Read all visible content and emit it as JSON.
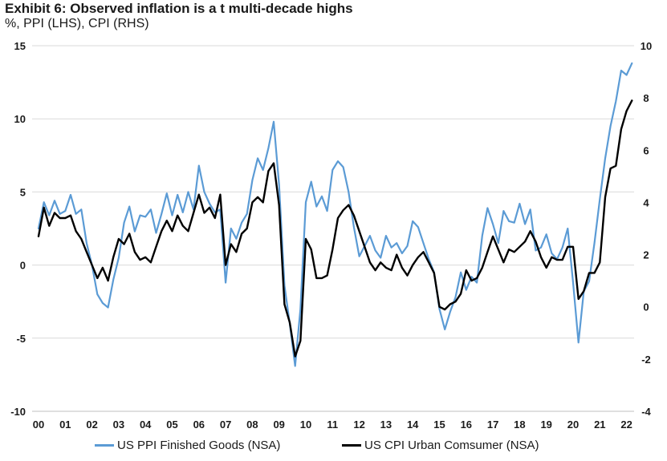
{
  "chart_data": {
    "type": "line",
    "title": "Exhibit 6: Observed inflation is a t multi-decade highs",
    "subtitle": "%, PPI (LHS), CPI (RHS)",
    "x_tick_labels": [
      "00",
      "01",
      "02",
      "03",
      "04",
      "05",
      "06",
      "07",
      "08",
      "09",
      "10",
      "11",
      "12",
      "13",
      "14",
      "15",
      "16",
      "17",
      "18",
      "19",
      "20",
      "21",
      "22"
    ],
    "x_range": [
      0,
      22.3
    ],
    "y_left": {
      "range": [
        -10,
        15
      ],
      "ticks": [
        15,
        10,
        5,
        0,
        -5,
        -10
      ]
    },
    "y_right": {
      "range": [
        -4,
        10
      ],
      "ticks": [
        10,
        8,
        6,
        4,
        2,
        0,
        -2,
        -4
      ]
    },
    "grid": "horizontal",
    "legend_position": "bottom",
    "series": [
      {
        "name": "US PPI Finished Goods (NSA)",
        "axis": "left",
        "color": "#5b9bd5",
        "points": [
          [
            0.0,
            2.5
          ],
          [
            0.2,
            4.3
          ],
          [
            0.4,
            3.4
          ],
          [
            0.6,
            4.4
          ],
          [
            0.8,
            3.5
          ],
          [
            1.0,
            3.7
          ],
          [
            1.2,
            4.8
          ],
          [
            1.4,
            3.5
          ],
          [
            1.6,
            3.8
          ],
          [
            1.8,
            1.5
          ],
          [
            2.0,
            0.0
          ],
          [
            2.2,
            -2.0
          ],
          [
            2.4,
            -2.6
          ],
          [
            2.6,
            -2.9
          ],
          [
            2.8,
            -1.0
          ],
          [
            3.0,
            0.5
          ],
          [
            3.2,
            2.9
          ],
          [
            3.4,
            4.0
          ],
          [
            3.6,
            2.3
          ],
          [
            3.8,
            3.4
          ],
          [
            4.0,
            3.3
          ],
          [
            4.2,
            3.8
          ],
          [
            4.4,
            2.2
          ],
          [
            4.6,
            3.5
          ],
          [
            4.8,
            4.9
          ],
          [
            5.0,
            3.4
          ],
          [
            5.2,
            4.8
          ],
          [
            5.4,
            3.6
          ],
          [
            5.6,
            5.0
          ],
          [
            5.8,
            3.8
          ],
          [
            6.0,
            6.8
          ],
          [
            6.2,
            5.0
          ],
          [
            6.4,
            4.2
          ],
          [
            6.6,
            3.6
          ],
          [
            6.8,
            3.8
          ],
          [
            7.0,
            -1.2
          ],
          [
            7.2,
            2.5
          ],
          [
            7.4,
            1.8
          ],
          [
            7.6,
            2.9
          ],
          [
            7.8,
            3.5
          ],
          [
            8.0,
            5.8
          ],
          [
            8.2,
            7.3
          ],
          [
            8.4,
            6.5
          ],
          [
            8.6,
            8.0
          ],
          [
            8.8,
            9.8
          ],
          [
            9.0,
            5.5
          ],
          [
            9.2,
            -1.4
          ],
          [
            9.4,
            -4.0
          ],
          [
            9.6,
            -6.9
          ],
          [
            9.8,
            -3.0
          ],
          [
            10.0,
            4.3
          ],
          [
            10.2,
            5.7
          ],
          [
            10.4,
            4.0
          ],
          [
            10.6,
            4.7
          ],
          [
            10.8,
            3.7
          ],
          [
            11.0,
            6.5
          ],
          [
            11.2,
            7.1
          ],
          [
            11.4,
            6.7
          ],
          [
            11.6,
            5.0
          ],
          [
            11.8,
            2.6
          ],
          [
            12.0,
            0.6
          ],
          [
            12.2,
            1.3
          ],
          [
            12.4,
            2.0
          ],
          [
            12.6,
            1.0
          ],
          [
            12.8,
            0.5
          ],
          [
            13.0,
            2.0
          ],
          [
            13.2,
            1.2
          ],
          [
            13.4,
            1.5
          ],
          [
            13.6,
            0.8
          ],
          [
            13.8,
            1.3
          ],
          [
            14.0,
            3.0
          ],
          [
            14.2,
            2.6
          ],
          [
            14.4,
            1.5
          ],
          [
            14.6,
            0.4
          ],
          [
            14.8,
            -0.5
          ],
          [
            15.0,
            -3.0
          ],
          [
            15.2,
            -4.4
          ],
          [
            15.4,
            -3.2
          ],
          [
            15.6,
            -2.2
          ],
          [
            15.8,
            -0.5
          ],
          [
            16.0,
            -1.7
          ],
          [
            16.2,
            -0.8
          ],
          [
            16.4,
            -1.2
          ],
          [
            16.6,
            2.0
          ],
          [
            16.8,
            3.9
          ],
          [
            17.0,
            2.8
          ],
          [
            17.2,
            1.5
          ],
          [
            17.4,
            3.7
          ],
          [
            17.6,
            3.0
          ],
          [
            17.8,
            2.9
          ],
          [
            18.0,
            4.2
          ],
          [
            18.2,
            2.8
          ],
          [
            18.4,
            3.8
          ],
          [
            18.6,
            1.0
          ],
          [
            18.8,
            1.2
          ],
          [
            19.0,
            2.1
          ],
          [
            19.2,
            0.8
          ],
          [
            19.4,
            0.4
          ],
          [
            19.6,
            1.2
          ],
          [
            19.8,
            2.5
          ],
          [
            20.0,
            -1.2
          ],
          [
            20.2,
            -5.3
          ],
          [
            20.4,
            -1.8
          ],
          [
            20.6,
            -1.1
          ],
          [
            20.8,
            1.5
          ],
          [
            21.0,
            4.5
          ],
          [
            21.2,
            7.3
          ],
          [
            21.4,
            9.5
          ],
          [
            21.6,
            11.2
          ],
          [
            21.8,
            13.3
          ],
          [
            22.0,
            13.0
          ],
          [
            22.2,
            13.8
          ]
        ]
      },
      {
        "name": "US CPI Urban Comsumer (NSA)",
        "axis": "right",
        "color": "#000000",
        "points": [
          [
            0.0,
            2.7
          ],
          [
            0.2,
            3.8
          ],
          [
            0.4,
            3.1
          ],
          [
            0.6,
            3.6
          ],
          [
            0.8,
            3.4
          ],
          [
            1.0,
            3.4
          ],
          [
            1.2,
            3.5
          ],
          [
            1.4,
            2.9
          ],
          [
            1.6,
            2.6
          ],
          [
            1.8,
            2.1
          ],
          [
            2.0,
            1.6
          ],
          [
            2.2,
            1.1
          ],
          [
            2.4,
            1.5
          ],
          [
            2.6,
            1.0
          ],
          [
            2.8,
            1.9
          ],
          [
            3.0,
            2.6
          ],
          [
            3.2,
            2.4
          ],
          [
            3.4,
            2.8
          ],
          [
            3.6,
            2.1
          ],
          [
            3.8,
            1.8
          ],
          [
            4.0,
            1.9
          ],
          [
            4.2,
            1.7
          ],
          [
            4.4,
            2.3
          ],
          [
            4.6,
            2.9
          ],
          [
            4.8,
            3.3
          ],
          [
            5.0,
            2.9
          ],
          [
            5.2,
            3.5
          ],
          [
            5.4,
            3.1
          ],
          [
            5.6,
            2.9
          ],
          [
            5.8,
            3.6
          ],
          [
            6.0,
            4.3
          ],
          [
            6.2,
            3.6
          ],
          [
            6.4,
            3.8
          ],
          [
            6.6,
            3.4
          ],
          [
            6.8,
            4.3
          ],
          [
            7.0,
            1.6
          ],
          [
            7.2,
            2.4
          ],
          [
            7.4,
            2.1
          ],
          [
            7.6,
            2.8
          ],
          [
            7.8,
            3.0
          ],
          [
            8.0,
            4.0
          ],
          [
            8.2,
            4.2
          ],
          [
            8.4,
            4.0
          ],
          [
            8.6,
            5.2
          ],
          [
            8.8,
            5.5
          ],
          [
            9.0,
            3.9
          ],
          [
            9.2,
            0.1
          ],
          [
            9.4,
            -0.6
          ],
          [
            9.6,
            -1.9
          ],
          [
            9.8,
            -1.3
          ],
          [
            10.0,
            2.6
          ],
          [
            10.2,
            2.2
          ],
          [
            10.4,
            1.1
          ],
          [
            10.6,
            1.1
          ],
          [
            10.8,
            1.2
          ],
          [
            11.0,
            2.2
          ],
          [
            11.2,
            3.4
          ],
          [
            11.4,
            3.7
          ],
          [
            11.6,
            3.9
          ],
          [
            11.8,
            3.5
          ],
          [
            12.0,
            2.9
          ],
          [
            12.2,
            2.3
          ],
          [
            12.4,
            1.7
          ],
          [
            12.6,
            1.4
          ],
          [
            12.8,
            1.7
          ],
          [
            13.0,
            1.5
          ],
          [
            13.2,
            1.4
          ],
          [
            13.4,
            2.0
          ],
          [
            13.6,
            1.5
          ],
          [
            13.8,
            1.2
          ],
          [
            14.0,
            1.6
          ],
          [
            14.2,
            1.9
          ],
          [
            14.4,
            2.1
          ],
          [
            14.6,
            1.7
          ],
          [
            14.8,
            1.3
          ],
          [
            15.0,
            0.0
          ],
          [
            15.2,
            -0.1
          ],
          [
            15.4,
            0.1
          ],
          [
            15.6,
            0.2
          ],
          [
            15.8,
            0.5
          ],
          [
            16.0,
            1.4
          ],
          [
            16.2,
            1.0
          ],
          [
            16.4,
            1.1
          ],
          [
            16.6,
            1.5
          ],
          [
            16.8,
            2.1
          ],
          [
            17.0,
            2.7
          ],
          [
            17.2,
            2.2
          ],
          [
            17.4,
            1.7
          ],
          [
            17.6,
            2.2
          ],
          [
            17.8,
            2.1
          ],
          [
            18.0,
            2.3
          ],
          [
            18.2,
            2.5
          ],
          [
            18.4,
            2.9
          ],
          [
            18.6,
            2.5
          ],
          [
            18.8,
            1.9
          ],
          [
            19.0,
            1.5
          ],
          [
            19.2,
            1.9
          ],
          [
            19.4,
            1.8
          ],
          [
            19.6,
            1.8
          ],
          [
            19.8,
            2.3
          ],
          [
            20.0,
            2.3
          ],
          [
            20.2,
            0.3
          ],
          [
            20.4,
            0.6
          ],
          [
            20.6,
            1.3
          ],
          [
            20.8,
            1.3
          ],
          [
            21.0,
            1.7
          ],
          [
            21.2,
            4.2
          ],
          [
            21.4,
            5.3
          ],
          [
            21.6,
            5.4
          ],
          [
            21.8,
            6.8
          ],
          [
            22.0,
            7.5
          ],
          [
            22.2,
            7.9
          ]
        ]
      }
    ]
  }
}
